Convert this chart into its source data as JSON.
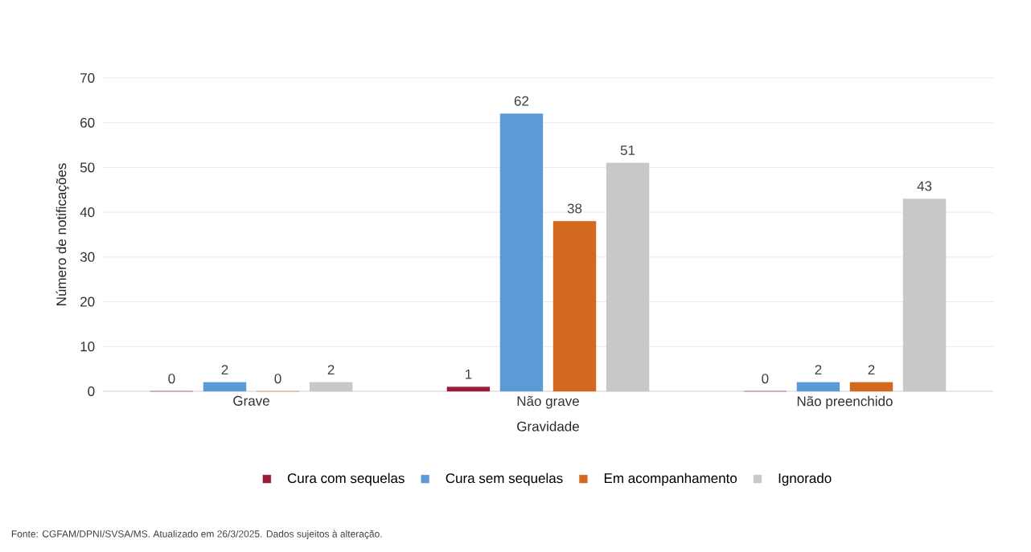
{
  "chart_data": {
    "type": "bar",
    "xlabel": "Gravidade",
    "ylabel": "Número de notificações",
    "categories": [
      "Grave",
      "Não grave",
      "Não preenchido"
    ],
    "series": [
      {
        "name": "Cura com sequelas",
        "color": "#9b1b3a",
        "values": [
          0,
          1,
          0
        ]
      },
      {
        "name": "Cura sem sequelas",
        "color": "#5b9bd5",
        "values": [
          2,
          62,
          2
        ]
      },
      {
        "name": "Em acompanhamento",
        "color": "#d2691e",
        "values": [
          0,
          38,
          2
        ]
      },
      {
        "name": "Ignorado",
        "color": "#c8c8c8",
        "values": [
          2,
          51,
          43
        ]
      }
    ],
    "ylim": [
      0,
      70
    ],
    "yticks": [
      0,
      10,
      20,
      30,
      40,
      50,
      60,
      70
    ],
    "grid": "y",
    "legend": "bottom",
    "data_labels": true,
    "annotations": [
      "Fonte: CGFAM/DPNI/SVSA/MS. Atualizado em 26/3/2025. Dados sujeitos à alteração."
    ]
  }
}
